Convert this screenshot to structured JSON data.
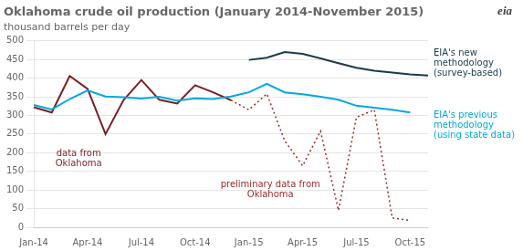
{
  "chart_data": {
    "type": "line",
    "title": "Oklahoma crude oil production (January 2014-November 2015)",
    "subtitle": "thousand barrels per day",
    "categories": [
      "Jan-14",
      null,
      null,
      "Apr-14",
      null,
      null,
      "Jul-14",
      null,
      null,
      "Oct-14",
      null,
      null,
      "Jan-15",
      null,
      null,
      "Apr-15",
      null,
      null,
      "Jul-15",
      null,
      null,
      "Oct-15",
      null
    ],
    "series": [
      {
        "name": "EIA's new\nmethodology\n(survey-based)",
        "color": "#1b3a4b",
        "line_style": "solid",
        "values": [
          null,
          null,
          null,
          null,
          null,
          null,
          null,
          null,
          null,
          null,
          null,
          null,
          449,
          455,
          470,
          465,
          453,
          440,
          428,
          420,
          415,
          410,
          407
        ]
      },
      {
        "name": "EIA's previous\nmethodology\n(using state data)",
        "color": "#00a8e0",
        "line_style": "solid",
        "values": [
          328,
          316,
          344,
          367,
          351,
          349,
          345,
          350,
          340,
          346,
          344,
          351,
          362,
          385,
          362,
          357,
          350,
          342,
          326,
          321,
          315,
          308,
          null
        ]
      },
      {
        "name": "data from\nOklahoma",
        "color": "#7b1f22",
        "line_style": "solid",
        "values": [
          322,
          308,
          406,
          371,
          250,
          341,
          395,
          342,
          332,
          381,
          362,
          341,
          null,
          null,
          null,
          null,
          null,
          null,
          null,
          null,
          null,
          null,
          null
        ]
      },
      {
        "name": "preliminary data from\nOklahoma",
        "color": "#9e2a2b",
        "line_style": "dotted",
        "values": [
          null,
          null,
          null,
          null,
          null,
          null,
          null,
          null,
          null,
          null,
          null,
          341,
          315,
          358,
          232,
          165,
          258,
          45,
          295,
          315,
          25,
          18,
          null
        ]
      }
    ],
    "annotations": [
      {
        "text": "eia"
      }
    ],
    "ylim": [
      0,
      500
    ],
    "yticks": [
      0,
      50,
      100,
      150,
      200,
      250,
      300,
      350,
      400,
      450,
      500
    ],
    "grid": true
  }
}
